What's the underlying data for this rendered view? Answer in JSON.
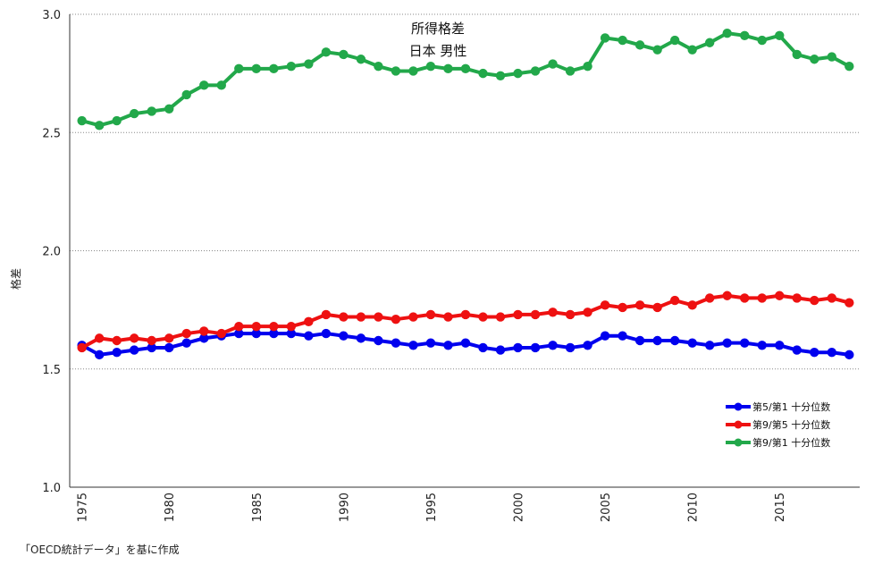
{
  "chart_data": {
    "type": "line",
    "title": [
      "所得格差",
      "日本 男性"
    ],
    "ylabel": "格差",
    "xlabel": "",
    "ylim": [
      1.0,
      3.0
    ],
    "yticks": [
      "1.0",
      "1.5",
      "2.0",
      "2.5",
      "3.0"
    ],
    "xticks": [
      "1975",
      "1980",
      "1985",
      "1990",
      "1995",
      "2000",
      "2005",
      "2010",
      "2015"
    ],
    "x": [
      1975,
      1976,
      1977,
      1978,
      1979,
      1980,
      1981,
      1982,
      1983,
      1984,
      1985,
      1986,
      1987,
      1988,
      1989,
      1990,
      1991,
      1992,
      1993,
      1994,
      1995,
      1996,
      1997,
      1998,
      1999,
      2000,
      2001,
      2002,
      2003,
      2004,
      2005,
      2006,
      2007,
      2008,
      2009,
      2010,
      2011,
      2012,
      2013,
      2014,
      2015,
      2016,
      2017,
      2018,
      2019
    ],
    "grid": "horizontal dotted",
    "legend_position": "bottom-right",
    "series": [
      {
        "name": "第5/第1 十分位数",
        "color": "#0000ee",
        "values": [
          1.6,
          1.56,
          1.57,
          1.58,
          1.59,
          1.59,
          1.61,
          1.63,
          1.64,
          1.65,
          1.65,
          1.65,
          1.65,
          1.64,
          1.65,
          1.64,
          1.63,
          1.62,
          1.61,
          1.6,
          1.61,
          1.6,
          1.61,
          1.59,
          1.58,
          1.59,
          1.59,
          1.6,
          1.59,
          1.6,
          1.64,
          1.64,
          1.62,
          1.62,
          1.62,
          1.61,
          1.6,
          1.61,
          1.61,
          1.6,
          1.6,
          1.58,
          1.57,
          1.57,
          1.56
        ]
      },
      {
        "name": "第9/第5 十分位数",
        "color": "#ee1111",
        "values": [
          1.59,
          1.63,
          1.62,
          1.63,
          1.62,
          1.63,
          1.65,
          1.66,
          1.65,
          1.68,
          1.68,
          1.68,
          1.68,
          1.7,
          1.73,
          1.72,
          1.72,
          1.72,
          1.71,
          1.72,
          1.73,
          1.72,
          1.73,
          1.72,
          1.72,
          1.73,
          1.73,
          1.74,
          1.73,
          1.74,
          1.77,
          1.76,
          1.77,
          1.76,
          1.79,
          1.77,
          1.8,
          1.81,
          1.8,
          1.8,
          1.81,
          1.8,
          1.79,
          1.8,
          1.78
        ]
      },
      {
        "name": "第9/第1 十分位数",
        "color": "#22a84a",
        "values": [
          2.55,
          2.53,
          2.55,
          2.58,
          2.59,
          2.6,
          2.66,
          2.7,
          2.7,
          2.77,
          2.77,
          2.77,
          2.78,
          2.79,
          2.84,
          2.83,
          2.81,
          2.78,
          2.76,
          2.76,
          2.78,
          2.77,
          2.77,
          2.75,
          2.74,
          2.75,
          2.76,
          2.79,
          2.76,
          2.78,
          2.9,
          2.89,
          2.87,
          2.85,
          2.89,
          2.85,
          2.88,
          2.92,
          2.91,
          2.89,
          2.91,
          2.83,
          2.81,
          2.82,
          2.78
        ]
      }
    ]
  },
  "source_note": "「OECD統計データ」を基に作成"
}
